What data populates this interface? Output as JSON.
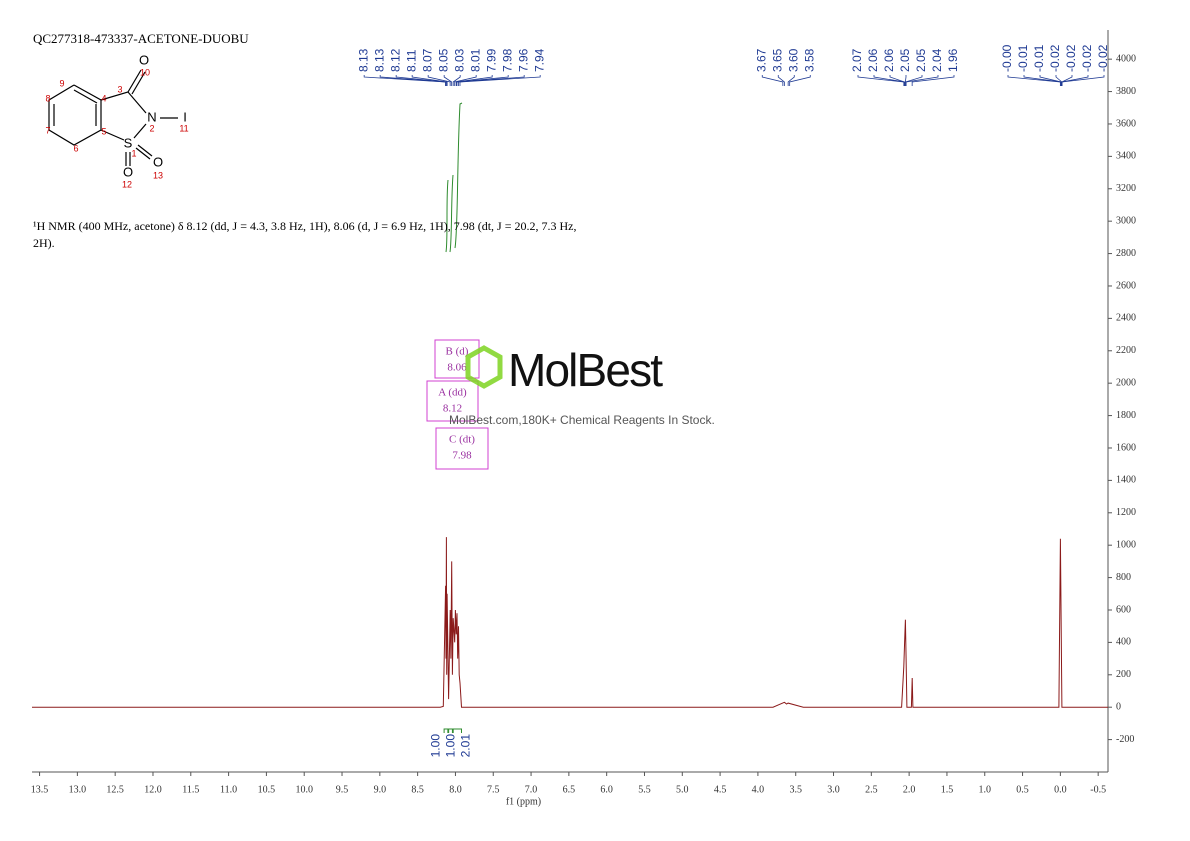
{
  "chart_data": {
    "type": "nmr",
    "title": "QC277318-473337-ACETONE-DUOBU",
    "description": "¹H NMR (400 MHz, acetone) δ 8.12 (dd, J = 4.3, 3.8 Hz, 1H), 8.06 (d, J = 6.9 Hz, 1H), 7.98 (dt, J = 20.2, 7.3 Hz, 2H).",
    "x_label": "f1 (ppm)",
    "xlim": [
      13.6,
      -0.63
    ],
    "xticks": [
      13.5,
      {
        "value": 13,
        "label": "13.0"
      },
      12.5,
      {
        "value": 12,
        "label": "12.0"
      },
      11.5,
      {
        "value": 11,
        "label": "11.0"
      },
      10.5,
      {
        "value": 10,
        "label": "10.0"
      },
      9.5,
      {
        "value": 9,
        "label": "9.0"
      },
      8.5,
      {
        "value": 8,
        "label": "8.0"
      },
      7.5,
      {
        "value": 7,
        "label": "7.0"
      },
      6.5,
      {
        "value": 6,
        "label": "6.0"
      },
      5.5,
      {
        "value": 5,
        "label": "5.0"
      },
      4.5,
      {
        "value": 4,
        "label": "4.0"
      },
      3.5,
      {
        "value": 3,
        "label": "3.0"
      },
      2.5,
      {
        "value": 2,
        "label": "2.0"
      },
      1.5,
      {
        "value": 1,
        "label": "1.0"
      },
      0.5,
      {
        "value": 0,
        "label": "0.0"
      },
      -0.5
    ],
    "ylim": [
      -400,
      4180
    ],
    "yticks": [
      -200,
      0,
      200,
      400,
      600,
      800,
      1000,
      1200,
      1400,
      1600,
      1800,
      2000,
      2200,
      2400,
      2600,
      2800,
      3000,
      3200,
      3400,
      3600,
      3800,
      4000
    ],
    "series": [
      {
        "color": "#8b1a1a",
        "x": [
          13.6,
          8.2,
          8.16,
          8.13,
          8.125,
          8.12,
          8.115,
          8.11,
          8.09,
          8.07,
          8.06,
          8.05,
          8.04,
          8.03,
          8.01,
          8.0,
          7.99,
          7.98,
          7.97,
          7.96,
          7.95,
          7.94,
          7.92,
          3.8,
          3.65,
          3.62,
          3.6,
          3.4,
          2.1,
          2.07,
          2.06,
          2.05,
          2.04,
          2.03,
          1.97,
          1.96,
          1.95,
          0.02,
          0.0,
          -0.02,
          -0.63
        ],
        "values": [
          0,
          0,
          5,
          750,
          300,
          1050,
          200,
          700,
          50,
          600,
          300,
          900,
          200,
          550,
          400,
          600,
          450,
          580,
          300,
          500,
          200,
          150,
          0,
          0,
          30,
          20,
          25,
          0,
          0,
          250,
          400,
          540,
          300,
          0,
          0,
          180,
          0,
          0,
          1040,
          0,
          0
        ]
      }
    ],
    "peak_labels": [
      8.13,
      8.13,
      8.12,
      8.11,
      8.07,
      8.05,
      8.03,
      8.01,
      7.99,
      7.98,
      7.96,
      7.94,
      3.67,
      3.65,
      {
        "value": 3.6,
        "label": "3.60"
      },
      3.58,
      2.07,
      2.06,
      2.06,
      2.05,
      2.05,
      2.04,
      1.96,
      {
        "value": 0,
        "label": "-0.00"
      },
      -0.01,
      -0.01,
      -0.02,
      -0.02,
      -0.02,
      -0.02
    ],
    "integrals": [
      {
        "range": [
          8.15,
          8.1
        ],
        "value": 1,
        "label": "1.00"
      },
      {
        "range": [
          8.09,
          8.04
        ],
        "value": 1,
        "label": "1.00"
      },
      {
        "range": [
          8.03,
          7.92
        ],
        "value": 2.01,
        "label": "2.01"
      }
    ],
    "annotations": [
      {
        "label": "B (d)",
        "shift": 8.06
      },
      {
        "label": "A (dd)",
        "shift": 8.12
      },
      {
        "label": "C (dt)",
        "shift": 7.98
      }
    ]
  },
  "structure": {
    "atoms": [
      "O",
      "N",
      "I",
      "S",
      "O",
      "O"
    ],
    "numbers": [
      "10",
      "3",
      "2",
      "11",
      "9",
      "8",
      "4",
      "7",
      "5",
      "6",
      "1",
      "12",
      "13"
    ]
  },
  "watermark": {
    "brand": "MolBest",
    "tagline": "MolBest.com,180K+ Chemical Reagents In Stock."
  }
}
